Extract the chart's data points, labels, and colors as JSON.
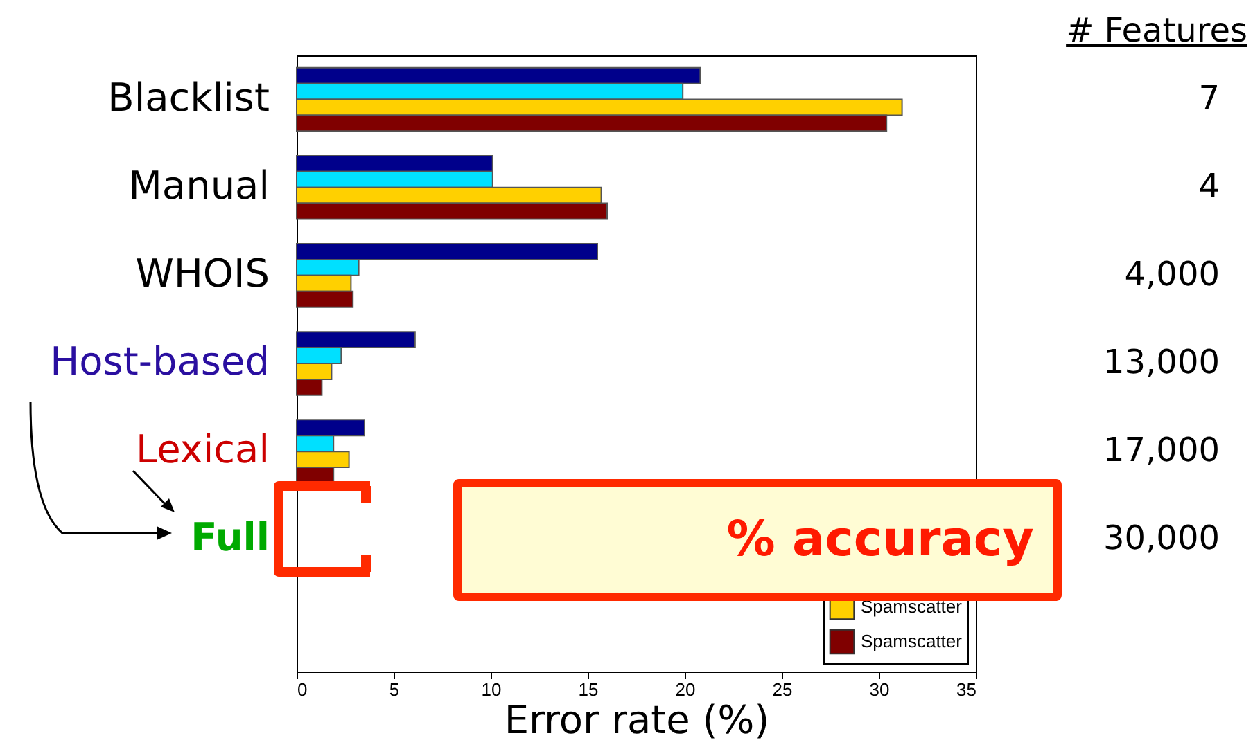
{
  "chart_data": {
    "type": "bar",
    "orientation": "horizontal",
    "xlabel": "Error rate (%)",
    "categories": [
      "Blacklist",
      "Manual",
      "WHOIS",
      "Host-based",
      "Lexical",
      "Full",
      null
    ],
    "series": [
      {
        "color": "#00008b",
        "values": [
          20.8,
          10.1,
          15.5,
          6.1,
          3.5,
          null,
          null
        ]
      },
      {
        "color": "#00e0ff",
        "values": [
          19.9,
          10.1,
          3.2,
          2.3,
          1.9,
          null,
          null
        ]
      },
      {
        "name": "Spamscatter",
        "color": "#ffd000",
        "values": [
          31.2,
          15.7,
          2.8,
          1.8,
          2.7,
          null,
          null
        ]
      },
      {
        "name": "Spamscatter",
        "color": "#800000",
        "values": [
          30.4,
          16.0,
          2.9,
          1.3,
          1.9,
          null,
          null
        ]
      }
    ],
    "xlim": [
      0,
      35
    ],
    "xticks": [
      0,
      5,
      10,
      15,
      20,
      25,
      30,
      35
    ],
    "grid": false,
    "legend": "bottom right",
    "annotations": [
      "# Features",
      "7",
      "4",
      "4,000",
      "13,000",
      "17,000",
      "30,000",
      "% accuracy"
    ]
  }
}
